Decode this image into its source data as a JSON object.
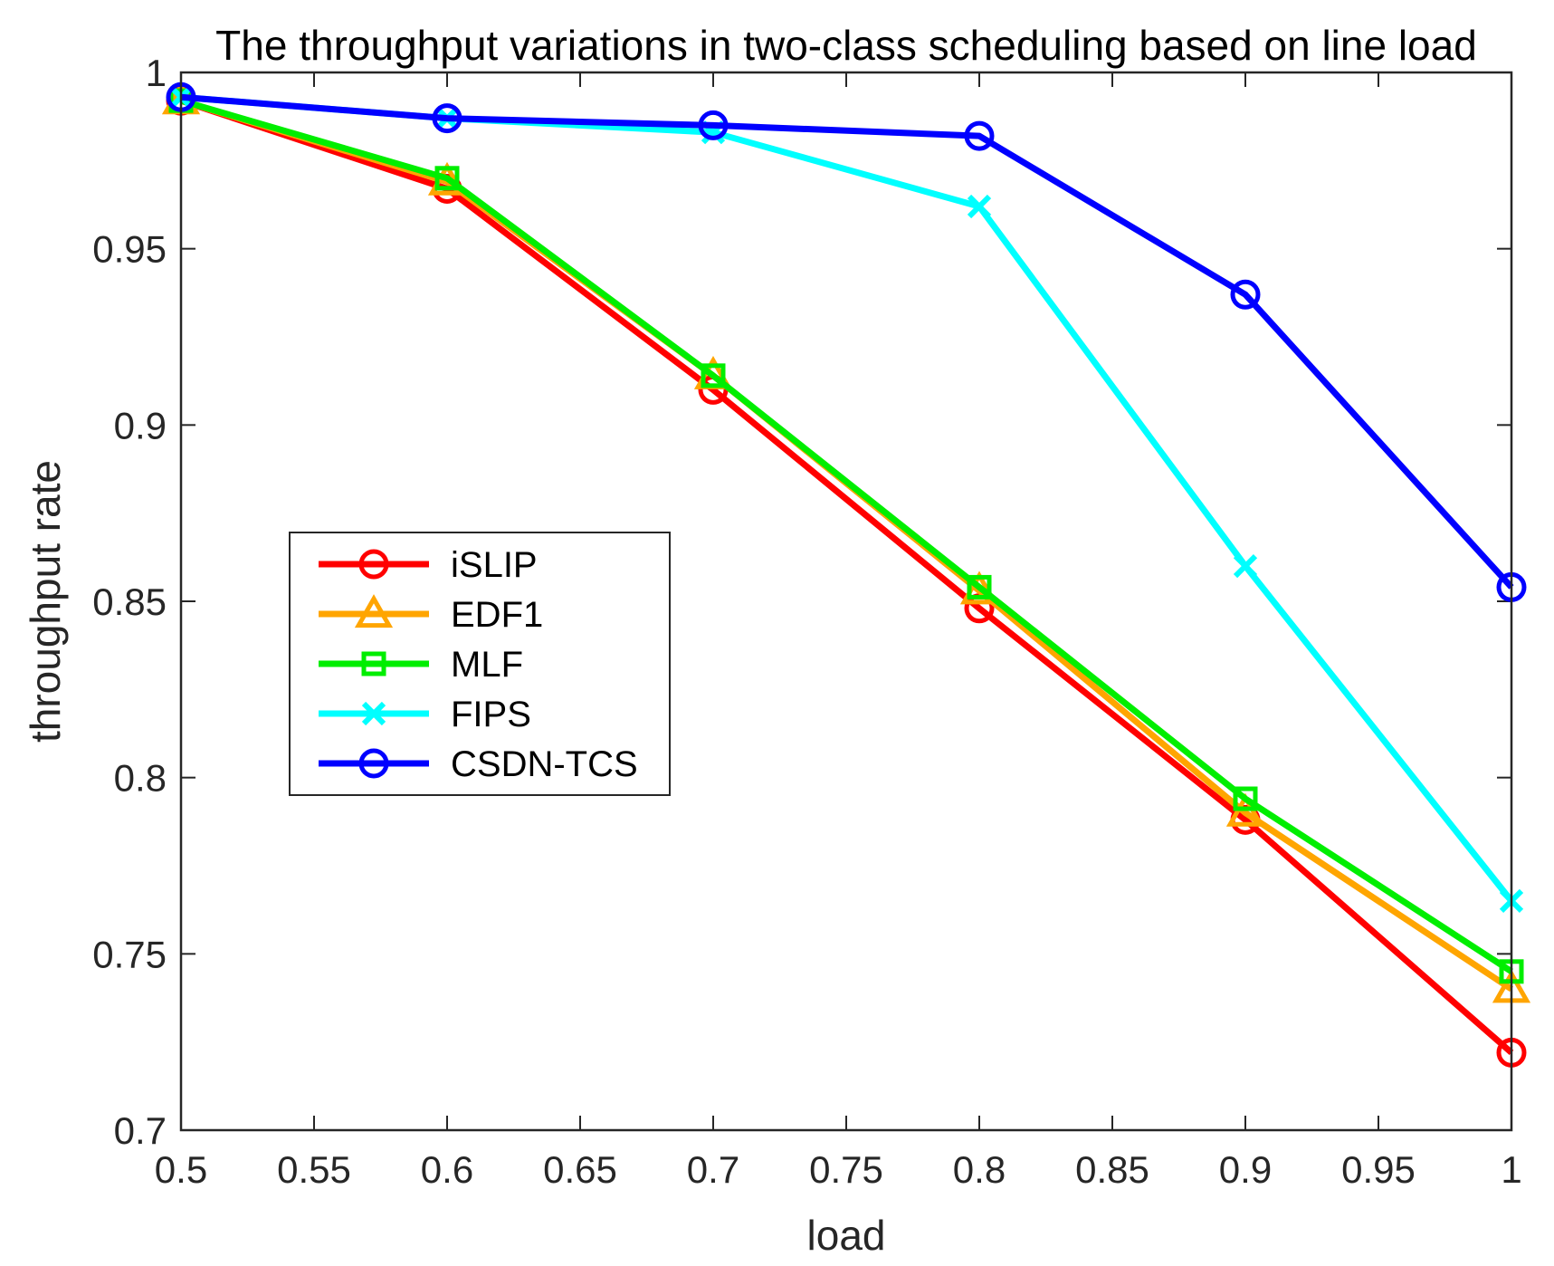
{
  "chart_data": {
    "type": "line",
    "title": "The throughput variations in two-class scheduling based on line load",
    "xlabel": "load",
    "ylabel": "throughput rate",
    "xlim": [
      0.5,
      1
    ],
    "ylim": [
      0.7,
      1
    ],
    "xticks": [
      "0.5",
      "0.55",
      "0.6",
      "0.65",
      "0.7",
      "0.75",
      "0.8",
      "0.85",
      "0.9",
      "0.95",
      "1"
    ],
    "yticks": [
      "0.7",
      "0.75",
      "0.8",
      "0.85",
      "0.9",
      "0.95",
      "1"
    ],
    "x": [
      0.5,
      0.6,
      0.7,
      0.8,
      0.9,
      1.0
    ],
    "legend_position": "center-left",
    "series": [
      {
        "name": "iSLIP",
        "color": "#ff0000",
        "marker": "circle",
        "values": [
          0.992,
          0.967,
          0.91,
          0.848,
          0.788,
          0.722
        ]
      },
      {
        "name": "EDF1",
        "color": "#ffa500",
        "marker": "triangle",
        "values": [
          0.992,
          0.969,
          0.914,
          0.853,
          0.79,
          0.74
        ]
      },
      {
        "name": "MLF",
        "color": "#00ee00",
        "marker": "square",
        "values": [
          0.992,
          0.97,
          0.914,
          0.854,
          0.794,
          0.745
        ]
      },
      {
        "name": "FIPS",
        "color": "#00ffff",
        "marker": "x",
        "values": [
          0.993,
          0.987,
          0.983,
          0.962,
          0.86,
          0.765
        ]
      },
      {
        "name": "CSDN-TCS",
        "color": "#0000ff",
        "marker": "circle",
        "values": [
          0.993,
          0.987,
          0.985,
          0.982,
          0.937,
          0.854
        ]
      }
    ]
  }
}
